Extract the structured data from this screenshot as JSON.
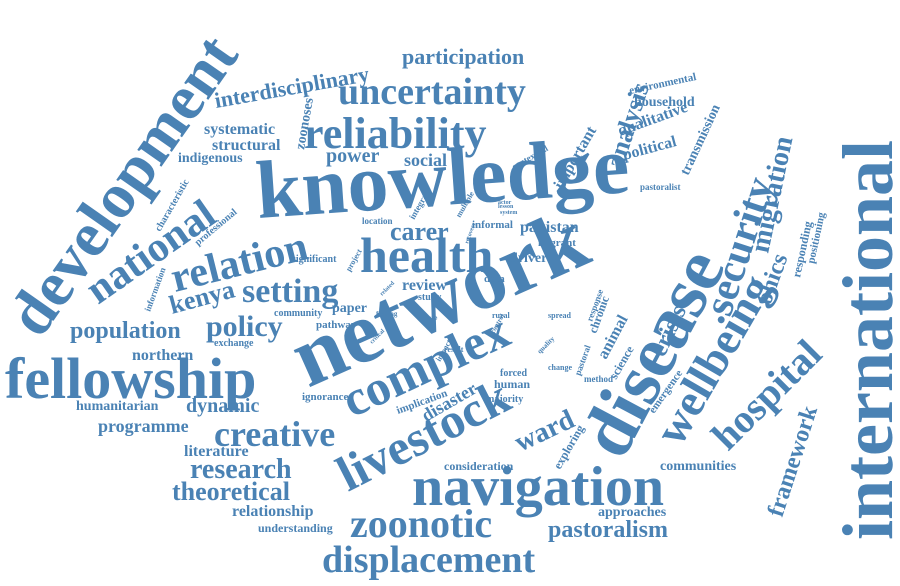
{
  "color": "#4a82b4",
  "words": [
    {
      "id": "international",
      "text": "international"
    },
    {
      "id": "knowledge",
      "text": "knowledge"
    },
    {
      "id": "network",
      "text": "network"
    },
    {
      "id": "disease",
      "text": "disease"
    },
    {
      "id": "development",
      "text": "development"
    },
    {
      "id": "fellowship",
      "text": "fellowship"
    },
    {
      "id": "navigation",
      "text": "navigation"
    },
    {
      "id": "livestock",
      "text": "livestock"
    },
    {
      "id": "complex",
      "text": "complex"
    },
    {
      "id": "wellbeing",
      "text": "wellbeing"
    },
    {
      "id": "displacement",
      "text": "displacement"
    },
    {
      "id": "zoonotic",
      "text": "zoonotic"
    },
    {
      "id": "reliability",
      "text": "reliability"
    },
    {
      "id": "health",
      "text": "health"
    },
    {
      "id": "relation",
      "text": "relation"
    },
    {
      "id": "national",
      "text": "national"
    },
    {
      "id": "uncertainty",
      "text": "uncertainty"
    },
    {
      "id": "security",
      "text": "security"
    },
    {
      "id": "hospital",
      "text": "hospital"
    },
    {
      "id": "creative",
      "text": "creative"
    },
    {
      "id": "setting",
      "text": "setting"
    },
    {
      "id": "policy",
      "text": "policy"
    },
    {
      "id": "interdisciplinary",
      "text": "interdisciplinary"
    },
    {
      "id": "participation",
      "text": "participation"
    },
    {
      "id": "migration",
      "text": "migration"
    },
    {
      "id": "research",
      "text": "research"
    },
    {
      "id": "theoretical",
      "text": "theoretical"
    },
    {
      "id": "pastoralism",
      "text": "pastoralism"
    },
    {
      "id": "framework",
      "text": "framework"
    },
    {
      "id": "population",
      "text": "population"
    },
    {
      "id": "kenya",
      "text": "kenya"
    },
    {
      "id": "crisis",
      "text": "crisis"
    },
    {
      "id": "ward",
      "text": "ward"
    },
    {
      "id": "carer",
      "text": "carer"
    },
    {
      "id": "analysis",
      "text": "analysis"
    },
    {
      "id": "ohics",
      "text": "ohics"
    },
    {
      "id": "power",
      "text": "power"
    },
    {
      "id": "social",
      "text": "social"
    },
    {
      "id": "disaster",
      "text": "disaster"
    },
    {
      "id": "dynamic",
      "text": "dynamic"
    },
    {
      "id": "literature",
      "text": "literature"
    },
    {
      "id": "programme",
      "text": "programme"
    },
    {
      "id": "relationship",
      "text": "relationship"
    },
    {
      "id": "humanitarian",
      "text": "humanitarian"
    },
    {
      "id": "northern",
      "text": "northern"
    },
    {
      "id": "systematic",
      "text": "systematic"
    },
    {
      "id": "structural",
      "text": "structural"
    },
    {
      "id": "indigenous",
      "text": "indigenous"
    },
    {
      "id": "zoonoses",
      "text": "zoonoses"
    },
    {
      "id": "important",
      "text": "important"
    },
    {
      "id": "qualitative",
      "text": "qualitative"
    },
    {
      "id": "political",
      "text": "political"
    },
    {
      "id": "transmission",
      "text": "transmission"
    },
    {
      "id": "household",
      "text": "household"
    },
    {
      "id": "environmental",
      "text": "environmental"
    },
    {
      "id": "pakistan",
      "text": "pakistan"
    },
    {
      "id": "driver",
      "text": "driver"
    },
    {
      "id": "review",
      "text": "review"
    },
    {
      "id": "paper",
      "text": "paper"
    },
    {
      "id": "communities",
      "text": "communities"
    },
    {
      "id": "approaches",
      "text": "approaches"
    },
    {
      "id": "understanding",
      "text": "understanding"
    },
    {
      "id": "consideration",
      "text": "consideration"
    },
    {
      "id": "exploring",
      "text": "exploring"
    },
    {
      "id": "animal",
      "text": "animal"
    },
    {
      "id": "chronic",
      "text": "chronic"
    },
    {
      "id": "science",
      "text": "science"
    },
    {
      "id": "responding",
      "text": "responding"
    },
    {
      "id": "positioning",
      "text": "positioning"
    },
    {
      "id": "emergence",
      "text": "emergence"
    },
    {
      "id": "human",
      "text": "human"
    },
    {
      "id": "ignorance",
      "text": "ignorance"
    },
    {
      "id": "implication",
      "text": "implication"
    },
    {
      "id": "majority",
      "text": "majority"
    },
    {
      "id": "forced",
      "text": "forced"
    },
    {
      "id": "informal",
      "text": "informal"
    },
    {
      "id": "migrant",
      "text": "migrant"
    },
    {
      "id": "data",
      "text": "data"
    },
    {
      "id": "study",
      "text": "study"
    },
    {
      "id": "community",
      "text": "community"
    },
    {
      "id": "pathway",
      "text": "pathway"
    },
    {
      "id": "exchange",
      "text": "exchange"
    },
    {
      "id": "characteristic",
      "text": "characteristic"
    },
    {
      "id": "professional",
      "text": "professional"
    },
    {
      "id": "information",
      "text": "information"
    },
    {
      "id": "significant",
      "text": "significant"
    },
    {
      "id": "location",
      "text": "location"
    },
    {
      "id": "integrate",
      "text": "integrate"
    },
    {
      "id": "multiple",
      "text": "multiple"
    },
    {
      "id": "contextual",
      "text": "contextual"
    },
    {
      "id": "pastoralist",
      "text": "pastoralist"
    },
    {
      "id": "method",
      "text": "method"
    },
    {
      "id": "change",
      "text": "change"
    },
    {
      "id": "pastoral",
      "text": "pastoral"
    },
    {
      "id": "response",
      "text": "response"
    },
    {
      "id": "rural",
      "text": "rural"
    },
    {
      "id": "spread",
      "text": "spread"
    },
    {
      "id": "result",
      "text": "result"
    },
    {
      "id": "impact",
      "text": "impact"
    },
    {
      "id": "project",
      "text": "project"
    },
    {
      "id": "finding",
      "text": "finding"
    },
    {
      "id": "more",
      "text": "more"
    },
    {
      "id": "control",
      "text": "control"
    },
    {
      "id": "quality",
      "text": "quality"
    },
    {
      "id": "recovery",
      "text": "recovery"
    },
    {
      "id": "lesson",
      "text": "lesson"
    },
    {
      "id": "system",
      "text": "system"
    },
    {
      "id": "actor",
      "text": "actor"
    },
    {
      "id": "related",
      "text": "related"
    },
    {
      "id": "critical",
      "text": "critical"
    }
  ]
}
